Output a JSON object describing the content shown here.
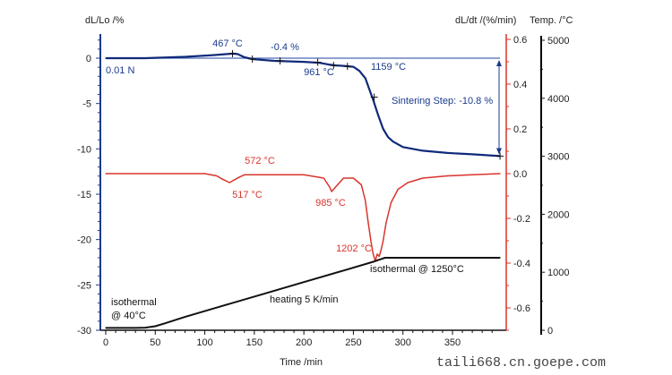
{
  "chart_data": {
    "type": "line",
    "xlabel": "Time /min",
    "xlim": [
      0,
      398
    ],
    "xticks": [
      0,
      50,
      100,
      150,
      200,
      250,
      300,
      350
    ],
    "axes": {
      "left": {
        "label": "dL/Lo /%",
        "range": [
          -30,
          2.6
        ],
        "ticks": [
          0,
          -5,
          -10,
          -15,
          -20,
          -25,
          -30
        ],
        "color": "#1a3a8c"
      },
      "right1": {
        "label": "dL/dt /(%/min)",
        "range": [
          -0.7,
          0.6
        ],
        "ticks": [
          0.6,
          0.4,
          0.2,
          0.0,
          -0.2,
          -0.4,
          -0.6
        ],
        "tick_labels": [
          "0.6",
          "0.4",
          "0.2",
          "0.0",
          "-0.2",
          "-0.4",
          "-0.6"
        ],
        "color": "#d9342b"
      },
      "right2": {
        "label": "Temp. /°C",
        "range": [
          0,
          5000
        ],
        "ticks": [
          5000,
          4000,
          3000,
          2000,
          1000,
          0
        ],
        "color": "#000000"
      }
    },
    "series": [
      {
        "name": "dL/Lo",
        "axis": "left",
        "color": "#102a7a",
        "x": [
          0,
          40,
          80,
          110,
          128,
          133,
          140,
          148,
          170,
          200,
          215,
          225,
          232,
          240,
          250,
          256,
          262,
          266,
          270,
          275,
          280,
          285,
          290,
          300,
          320,
          345,
          370,
          398
        ],
        "y": [
          0,
          0,
          0.15,
          0.35,
          0.5,
          0.45,
          0.1,
          -0.1,
          -0.3,
          -0.4,
          -0.5,
          -0.7,
          -0.8,
          -0.85,
          -0.95,
          -1.4,
          -2.2,
          -3.4,
          -4.6,
          -6.3,
          -7.8,
          -8.7,
          -9.2,
          -9.8,
          -10.2,
          -10.45,
          -10.6,
          -10.8
        ]
      },
      {
        "name": "dL/dt",
        "axis": "right1",
        "color": "#d9342b",
        "x": [
          0,
          100,
          112,
          118,
          125,
          129,
          135,
          140,
          200,
          220,
          226,
          228,
          232,
          240,
          250,
          258,
          262,
          265,
          268,
          270,
          272,
          274,
          276,
          278,
          280,
          283,
          288,
          295,
          305,
          320,
          345,
          370,
          398
        ],
        "y": [
          0,
          0,
          -0.01,
          -0.025,
          -0.04,
          -0.03,
          -0.015,
          -0.005,
          -0.005,
          -0.02,
          -0.06,
          -0.08,
          -0.06,
          -0.02,
          -0.02,
          -0.05,
          -0.12,
          -0.22,
          -0.31,
          -0.36,
          -0.39,
          -0.36,
          -0.37,
          -0.34,
          -0.3,
          -0.22,
          -0.13,
          -0.07,
          -0.04,
          -0.02,
          -0.01,
          -0.005,
          0.0
        ]
      },
      {
        "name": "Temp",
        "axis": "right2",
        "color": "#111111",
        "x": [
          0,
          30,
          40,
          50,
          60,
          80,
          120,
          160,
          200,
          240,
          270,
          275,
          282,
          300,
          350,
          398
        ],
        "y": [
          40,
          40,
          45,
          70,
          120,
          230,
          430,
          630,
          830,
          1030,
          1180,
          1210,
          1250,
          1250,
          1250,
          1250
        ]
      }
    ],
    "baseline": {
      "axis": "left",
      "y": 0,
      "color": "#4b6bb5"
    },
    "annotations": [
      {
        "text": "467 °C",
        "color": "#1a3a8c"
      },
      {
        "text": "-0.4 %",
        "color": "#1a3a8c"
      },
      {
        "text": "0.01 N",
        "color": "#1a3a8c"
      },
      {
        "text": "961 °C",
        "color": "#1a3a8c"
      },
      {
        "text": "1159 °C",
        "color": "#1a3a8c"
      },
      {
        "text": "Sintering Step: -10.8 %",
        "color": "#1a3a8c"
      },
      {
        "text": "572 °C",
        "color": "#d9342b"
      },
      {
        "text": "517 °C",
        "color": "#d9342b"
      },
      {
        "text": "985 °C",
        "color": "#d9342b"
      },
      {
        "text": "1202 °C",
        "color": "#d9342b"
      },
      {
        "text": "isothermal @ 1250°C",
        "color": "#111111"
      },
      {
        "text": "heating 5 K/min",
        "color": "#111111"
      },
      {
        "text": "isothermal",
        "color": "#111111"
      },
      {
        "text": "@ 40°C",
        "color": "#111111"
      }
    ]
  },
  "watermark": "taili668.cn.goepe.com"
}
